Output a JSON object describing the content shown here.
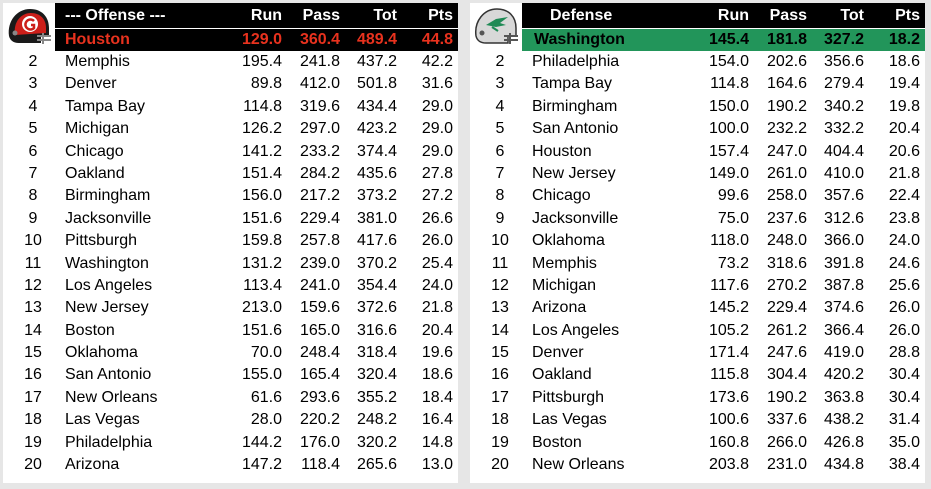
{
  "offense": {
    "title": "--- Offense ---",
    "logo_icon": "helmet-red-g-logo",
    "columns": [
      "Run",
      "Pass",
      "Tot",
      "Pts"
    ],
    "leader": {
      "team": "Houston",
      "run": "129.0",
      "pass": "360.4",
      "tot": "489.4",
      "pts": "44.8"
    },
    "rows": [
      {
        "rank": "2",
        "team": "Memphis",
        "run": "195.4",
        "pass": "241.8",
        "tot": "437.2",
        "pts": "42.2"
      },
      {
        "rank": "3",
        "team": "Denver",
        "run": "89.8",
        "pass": "412.0",
        "tot": "501.8",
        "pts": "31.6"
      },
      {
        "rank": "4",
        "team": "Tampa Bay",
        "run": "114.8",
        "pass": "319.6",
        "tot": "434.4",
        "pts": "29.0"
      },
      {
        "rank": "5",
        "team": "Michigan",
        "run": "126.2",
        "pass": "297.0",
        "tot": "423.2",
        "pts": "29.0"
      },
      {
        "rank": "6",
        "team": "Chicago",
        "run": "141.2",
        "pass": "233.2",
        "tot": "374.4",
        "pts": "29.0"
      },
      {
        "rank": "7",
        "team": "Oakland",
        "run": "151.4",
        "pass": "284.2",
        "tot": "435.6",
        "pts": "27.8"
      },
      {
        "rank": "8",
        "team": "Birmingham",
        "run": "156.0",
        "pass": "217.2",
        "tot": "373.2",
        "pts": "27.2"
      },
      {
        "rank": "9",
        "team": "Jacksonville",
        "run": "151.6",
        "pass": "229.4",
        "tot": "381.0",
        "pts": "26.6"
      },
      {
        "rank": "10",
        "team": "Pittsburgh",
        "run": "159.8",
        "pass": "257.8",
        "tot": "417.6",
        "pts": "26.0"
      },
      {
        "rank": "11",
        "team": "Washington",
        "run": "131.2",
        "pass": "239.0",
        "tot": "370.2",
        "pts": "25.4"
      },
      {
        "rank": "12",
        "team": "Los Angeles",
        "run": "113.4",
        "pass": "241.0",
        "tot": "354.4",
        "pts": "24.0"
      },
      {
        "rank": "13",
        "team": "New Jersey",
        "run": "213.0",
        "pass": "159.6",
        "tot": "372.6",
        "pts": "21.8"
      },
      {
        "rank": "14",
        "team": "Boston",
        "run": "151.6",
        "pass": "165.0",
        "tot": "316.6",
        "pts": "20.4"
      },
      {
        "rank": "15",
        "team": "Oklahoma",
        "run": "70.0",
        "pass": "248.4",
        "tot": "318.4",
        "pts": "19.6"
      },
      {
        "rank": "16",
        "team": "San Antonio",
        "run": "155.0",
        "pass": "165.4",
        "tot": "320.4",
        "pts": "18.6"
      },
      {
        "rank": "17",
        "team": "New Orleans",
        "run": "61.6",
        "pass": "293.6",
        "tot": "355.2",
        "pts": "18.4"
      },
      {
        "rank": "18",
        "team": "Las Vegas",
        "run": "28.0",
        "pass": "220.2",
        "tot": "248.2",
        "pts": "16.4"
      },
      {
        "rank": "19",
        "team": "Philadelphia",
        "run": "144.2",
        "pass": "176.0",
        "tot": "320.2",
        "pts": "14.8"
      },
      {
        "rank": "20",
        "team": "Arizona",
        "run": "147.2",
        "pass": "118.4",
        "tot": "265.6",
        "pts": "13.0"
      }
    ]
  },
  "defense": {
    "title": "Defense",
    "logo_icon": "helmet-green-bird-logo",
    "columns": [
      "Run",
      "Pass",
      "Tot",
      "Pts"
    ],
    "leader": {
      "team": "Washington",
      "run": "145.4",
      "pass": "181.8",
      "tot": "327.2",
      "pts": "18.2"
    },
    "rows": [
      {
        "rank": "2",
        "team": "Philadelphia",
        "run": "154.0",
        "pass": "202.6",
        "tot": "356.6",
        "pts": "18.6"
      },
      {
        "rank": "3",
        "team": "Tampa Bay",
        "run": "114.8",
        "pass": "164.6",
        "tot": "279.4",
        "pts": "19.4"
      },
      {
        "rank": "4",
        "team": "Birmingham",
        "run": "150.0",
        "pass": "190.2",
        "tot": "340.2",
        "pts": "19.8"
      },
      {
        "rank": "5",
        "team": "San Antonio",
        "run": "100.0",
        "pass": "232.2",
        "tot": "332.2",
        "pts": "20.4"
      },
      {
        "rank": "6",
        "team": "Houston",
        "run": "157.4",
        "pass": "247.0",
        "tot": "404.4",
        "pts": "20.6"
      },
      {
        "rank": "7",
        "team": "New Jersey",
        "run": "149.0",
        "pass": "261.0",
        "tot": "410.0",
        "pts": "21.8"
      },
      {
        "rank": "8",
        "team": "Chicago",
        "run": "99.6",
        "pass": "258.0",
        "tot": "357.6",
        "pts": "22.4"
      },
      {
        "rank": "9",
        "team": "Jacksonville",
        "run": "75.0",
        "pass": "237.6",
        "tot": "312.6",
        "pts": "23.8"
      },
      {
        "rank": "10",
        "team": "Oklahoma",
        "run": "118.0",
        "pass": "248.0",
        "tot": "366.0",
        "pts": "24.0"
      },
      {
        "rank": "11",
        "team": "Memphis",
        "run": "73.2",
        "pass": "318.6",
        "tot": "391.8",
        "pts": "24.6"
      },
      {
        "rank": "12",
        "team": "Michigan",
        "run": "117.6",
        "pass": "270.2",
        "tot": "387.8",
        "pts": "25.6"
      },
      {
        "rank": "13",
        "team": "Arizona",
        "run": "145.2",
        "pass": "229.4",
        "tot": "374.6",
        "pts": "26.0"
      },
      {
        "rank": "14",
        "team": "Los Angeles",
        "run": "105.2",
        "pass": "261.2",
        "tot": "366.4",
        "pts": "26.0"
      },
      {
        "rank": "15",
        "team": "Denver",
        "run": "171.4",
        "pass": "247.6",
        "tot": "419.0",
        "pts": "28.8"
      },
      {
        "rank": "16",
        "team": "Oakland",
        "run": "115.8",
        "pass": "304.4",
        "tot": "420.2",
        "pts": "30.4"
      },
      {
        "rank": "17",
        "team": "Pittsburgh",
        "run": "173.6",
        "pass": "190.2",
        "tot": "363.8",
        "pts": "30.4"
      },
      {
        "rank": "18",
        "team": "Las Vegas",
        "run": "100.6",
        "pass": "337.6",
        "tot": "438.2",
        "pts": "31.4"
      },
      {
        "rank": "19",
        "team": "Boston",
        "run": "160.8",
        "pass": "266.0",
        "tot": "426.8",
        "pts": "35.0"
      },
      {
        "rank": "20",
        "team": "New Orleans",
        "run": "203.8",
        "pass": "231.0",
        "tot": "434.8",
        "pts": "38.4"
      }
    ]
  },
  "colors": {
    "header_bg": "#000000",
    "offense_leader_text": "#e8321e",
    "defense_leader_bg": "#22955a",
    "page_bg": "#e6e6e6"
  }
}
